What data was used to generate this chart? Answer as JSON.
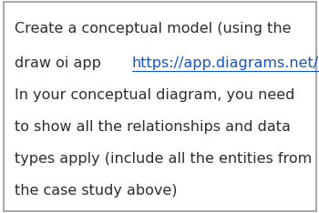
{
  "background_color": "#ffffff",
  "border_color": "#999999",
  "text_color": "#2d2d2d",
  "link_color": "#1155CC",
  "font_size": 11.5,
  "line1": "Create a conceptual model (using the",
  "line2_pre": "draw oi app ",
  "line2_link": "https://app.diagrams.net/",
  "line2_post": ")",
  "line3": "In your conceptual diagram, you need",
  "line4": "to show all the relationships and data",
  "line5": "types apply (include all the entities from",
  "line6": "the case study above)"
}
